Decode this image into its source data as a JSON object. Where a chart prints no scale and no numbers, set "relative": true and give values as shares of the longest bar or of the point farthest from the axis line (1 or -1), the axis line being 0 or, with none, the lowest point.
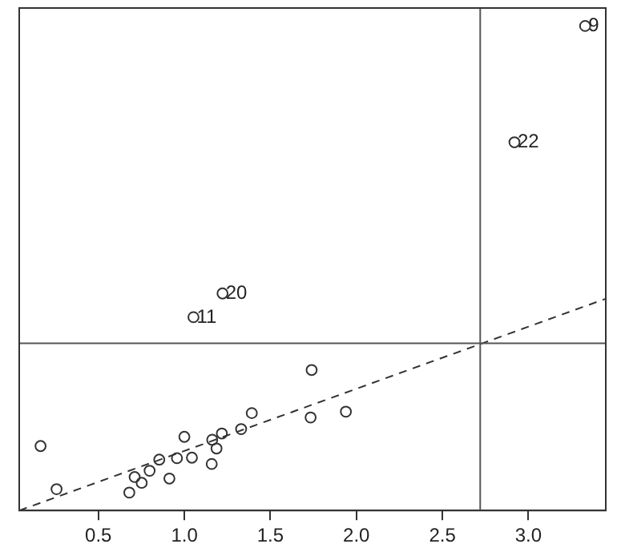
{
  "chart_data": {
    "type": "scatter",
    "relative": true,
    "xlim": [
      0.04,
      3.45
    ],
    "xticks": [
      {
        "value": 0.5,
        "label": "0.5"
      },
      {
        "value": 1,
        "label": "1.0"
      },
      {
        "value": 1.5,
        "label": "1.5"
      },
      {
        "value": 2,
        "label": "2.0"
      },
      {
        "value": 2.5,
        "label": "2.5"
      },
      {
        "value": 3,
        "label": "3.0"
      }
    ],
    "marker": "circle",
    "grid": false,
    "legend": false,
    "series": [
      {
        "type": "scatter",
        "color": "#333333",
        "x": [
          0.164,
          0.257,
          0.68,
          0.711,
          0.752,
          0.798,
          0.854,
          0.913,
          0.957,
          1.0,
          1.044,
          1.159,
          1.162,
          1.187,
          1.218,
          1.33,
          1.392,
          1.734,
          1.74,
          1.939,
          1.053,
          1.222,
          2.919,
          3.33
        ],
        "values": [
          0.133,
          0.044,
          0.037,
          0.069,
          0.057,
          0.082,
          0.105,
          0.066,
          0.108,
          0.152,
          0.109,
          0.096,
          0.146,
          0.128,
          0.159,
          0.168,
          0.201,
          0.192,
          0.29,
          0.204,
          0.399,
          0.448,
          0.76,
          1
        ]
      },
      {
        "type": "line",
        "color": "#333333",
        "line_style": "dashed",
        "marker": "none",
        "x": [
          0.04,
          3.45
        ],
        "values": [
          0,
          0.437
        ]
      }
    ],
    "ref_lines": [
      {
        "axis": "x",
        "value": 2.72,
        "color": "#555555"
      },
      {
        "axis": "y",
        "value": 0.345,
        "color": "#555555"
      }
    ],
    "annotations": [
      {
        "text": "11",
        "x": 1.053,
        "y": 0.399
      },
      {
        "text": "20",
        "x": 1.222,
        "y": 0.448
      },
      {
        "text": "22",
        "x": 2.919,
        "y": 0.76
      },
      {
        "text": "9",
        "x": 3.33,
        "y": 1
      }
    ]
  }
}
